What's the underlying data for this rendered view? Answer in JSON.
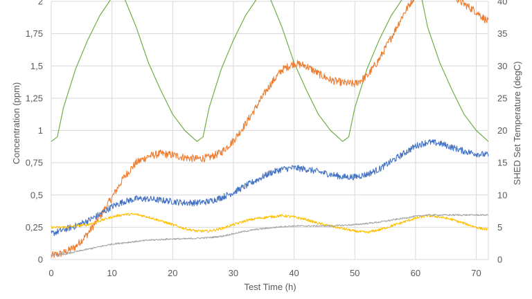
{
  "chart_data": {
    "type": "line",
    "xlabel": "Test Time (h)",
    "ylabel": "Concentration (ppm)",
    "y2label": "SHED Set Temperature (degC)",
    "xlim": [
      0,
      72
    ],
    "ylim": [
      0,
      2.0
    ],
    "y2lim": [
      0,
      40
    ],
    "grid": true,
    "legend": "none",
    "x_ticks": [
      0,
      10,
      20,
      30,
      40,
      50,
      60,
      70
    ],
    "y_ticks": [
      0,
      0.25,
      0.5,
      0.75,
      1,
      1.25,
      1.5,
      1.75,
      2
    ],
    "y_tick_labels": [
      "0",
      "0,25",
      "0,5",
      "0,75",
      "1",
      "1,25",
      "1,5",
      "1,75",
      "2"
    ],
    "y2_ticks": [
      0,
      5,
      10,
      15,
      20,
      25,
      30,
      35,
      40
    ],
    "series": [
      {
        "color": "#70AD47",
        "axis": "right",
        "x": [
          0,
          1,
          2,
          4,
          6,
          8,
          10,
          11,
          12,
          14,
          16,
          18,
          20,
          22,
          24,
          25,
          26,
          28,
          30,
          32,
          34,
          35,
          36,
          38,
          40,
          42,
          44,
          46,
          48,
          49,
          50,
          52,
          54,
          56,
          58,
          60,
          61,
          62,
          64,
          66,
          68,
          70,
          72
        ],
        "values": [
          18.3,
          19.0,
          23.5,
          29.5,
          34.0,
          37.8,
          40.6,
          40.8,
          40.6,
          36.0,
          30.5,
          26.3,
          22.5,
          20.0,
          18.3,
          19.0,
          23.5,
          29.5,
          34.0,
          37.8,
          40.6,
          40.8,
          40.6,
          36.0,
          30.5,
          26.3,
          22.5,
          20.0,
          18.3,
          19.0,
          23.5,
          29.5,
          34.0,
          37.8,
          40.6,
          40.8,
          40.6,
          36.0,
          30.5,
          26.3,
          22.5,
          20.0,
          18.3
        ]
      },
      {
        "color": "#ED7D31",
        "axis": "left",
        "noise": 0.03,
        "x": [
          0,
          2,
          4,
          6,
          8,
          10,
          12,
          14,
          16,
          18,
          20,
          22,
          24,
          26,
          28,
          30,
          32,
          34,
          36,
          38,
          40,
          42,
          44,
          46,
          48,
          50,
          52,
          54,
          56,
          58,
          60,
          62,
          64,
          66,
          68,
          70,
          72
        ],
        "values": [
          0.03,
          0.05,
          0.1,
          0.2,
          0.33,
          0.48,
          0.64,
          0.75,
          0.8,
          0.82,
          0.81,
          0.79,
          0.78,
          0.79,
          0.83,
          0.92,
          1.05,
          1.2,
          1.35,
          1.47,
          1.52,
          1.5,
          1.44,
          1.39,
          1.37,
          1.36,
          1.42,
          1.55,
          1.72,
          1.9,
          2.05,
          2.15,
          2.12,
          2.05,
          1.98,
          1.92,
          1.84
        ]
      },
      {
        "color": "#4472C4",
        "axis": "left",
        "noise": 0.025,
        "x": [
          0,
          2,
          4,
          6,
          8,
          10,
          12,
          14,
          16,
          18,
          20,
          22,
          24,
          26,
          28,
          30,
          32,
          34,
          36,
          38,
          40,
          42,
          44,
          46,
          48,
          50,
          52,
          54,
          56,
          58,
          60,
          62,
          64,
          66,
          68,
          70,
          72
        ],
        "values": [
          0.2,
          0.23,
          0.26,
          0.3,
          0.35,
          0.41,
          0.45,
          0.47,
          0.47,
          0.46,
          0.45,
          0.44,
          0.44,
          0.45,
          0.48,
          0.52,
          0.57,
          0.62,
          0.67,
          0.7,
          0.71,
          0.7,
          0.68,
          0.66,
          0.64,
          0.64,
          0.66,
          0.7,
          0.76,
          0.82,
          0.88,
          0.91,
          0.9,
          0.87,
          0.84,
          0.82,
          0.81
        ]
      },
      {
        "color": "#FFC000",
        "axis": "left",
        "noise": 0.01,
        "x": [
          0,
          2,
          4,
          6,
          8,
          10,
          12,
          14,
          16,
          18,
          20,
          22,
          24,
          26,
          28,
          30,
          32,
          34,
          36,
          38,
          40,
          42,
          44,
          46,
          48,
          50,
          52,
          54,
          56,
          58,
          60,
          62,
          64,
          66,
          68,
          70,
          72
        ],
        "values": [
          0.25,
          0.25,
          0.26,
          0.27,
          0.3,
          0.33,
          0.35,
          0.35,
          0.33,
          0.3,
          0.27,
          0.24,
          0.22,
          0.22,
          0.24,
          0.27,
          0.3,
          0.32,
          0.33,
          0.34,
          0.33,
          0.31,
          0.28,
          0.26,
          0.24,
          0.22,
          0.21,
          0.23,
          0.26,
          0.29,
          0.32,
          0.34,
          0.33,
          0.31,
          0.28,
          0.25,
          0.23
        ]
      },
      {
        "color": "#A5A5A5",
        "axis": "left",
        "noise": 0.006,
        "x": [
          0,
          2,
          4,
          6,
          8,
          10,
          12,
          14,
          16,
          18,
          20,
          22,
          24,
          26,
          28,
          30,
          32,
          34,
          36,
          38,
          40,
          42,
          44,
          46,
          48,
          50,
          52,
          54,
          56,
          58,
          60,
          62,
          64,
          66,
          68,
          70,
          72
        ],
        "values": [
          0.03,
          0.04,
          0.06,
          0.08,
          0.1,
          0.12,
          0.13,
          0.14,
          0.15,
          0.155,
          0.16,
          0.16,
          0.165,
          0.17,
          0.18,
          0.2,
          0.22,
          0.235,
          0.245,
          0.255,
          0.26,
          0.26,
          0.26,
          0.26,
          0.265,
          0.27,
          0.28,
          0.29,
          0.305,
          0.32,
          0.335,
          0.345,
          0.345,
          0.345,
          0.345,
          0.345,
          0.345
        ]
      }
    ]
  }
}
